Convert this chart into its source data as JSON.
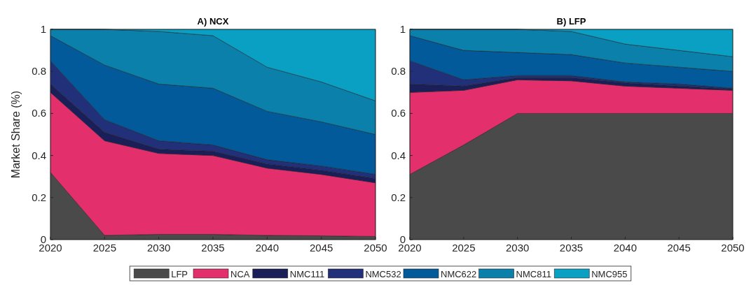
{
  "chart_data": [
    {
      "type": "area",
      "stacked": true,
      "title": "A) NCX",
      "ylabel": "Market Share (%)",
      "x": [
        2020,
        2025,
        2030,
        2035,
        2040,
        2045,
        2050
      ],
      "xlim": [
        2020,
        2050
      ],
      "xticks": [
        2020,
        2025,
        2030,
        2035,
        2040,
        2045,
        2050
      ],
      "ylim": [
        0,
        1
      ],
      "yticks": [
        0,
        0.2,
        0.4,
        0.6,
        0.8,
        1
      ],
      "legend": "bottom",
      "series": [
        {
          "name": "LFP",
          "color": "#4a4a4a",
          "values": [
            0.32,
            0.02,
            0.025,
            0.025,
            0.02,
            0.018,
            0.015
          ]
        },
        {
          "name": "NCA",
          "color": "#e3306c",
          "values": [
            0.38,
            0.45,
            0.385,
            0.375,
            0.32,
            0.292,
            0.255
          ]
        },
        {
          "name": "NMC111",
          "color": "#1a1f5a",
          "values": [
            0.04,
            0.04,
            0.02,
            0.02,
            0.02,
            0.02,
            0.02
          ]
        },
        {
          "name": "NMC532",
          "color": "#22307a",
          "values": [
            0.11,
            0.06,
            0.04,
            0.03,
            0.02,
            0.02,
            0.02
          ]
        },
        {
          "name": "NMC622",
          "color": "#035a9a",
          "values": [
            0.12,
            0.26,
            0.27,
            0.27,
            0.23,
            0.21,
            0.19
          ]
        },
        {
          "name": "NMC811",
          "color": "#0a80aa",
          "values": [
            0.03,
            0.17,
            0.25,
            0.25,
            0.21,
            0.19,
            0.16
          ]
        },
        {
          "name": "NMC955",
          "color": "#0aa0c4",
          "values": [
            0,
            0,
            0.01,
            0.03,
            0.18,
            0.25,
            0.34
          ]
        }
      ]
    },
    {
      "type": "area",
      "stacked": true,
      "title": "B) LFP",
      "x": [
        2020,
        2025,
        2030,
        2035,
        2040,
        2045,
        2050
      ],
      "xlim": [
        2020,
        2050
      ],
      "xticks": [
        2020,
        2025,
        2030,
        2035,
        2040,
        2045,
        2050
      ],
      "ylim": [
        0,
        1
      ],
      "yticks": [
        0,
        0.2,
        0.4,
        0.6,
        0.8,
        1
      ],
      "series": [
        {
          "name": "LFP",
          "color": "#4a4a4a",
          "values": [
            0.31,
            0.45,
            0.6,
            0.6,
            0.6,
            0.6,
            0.6
          ]
        },
        {
          "name": "NCA",
          "color": "#e3306c",
          "values": [
            0.39,
            0.26,
            0.16,
            0.155,
            0.13,
            0.12,
            0.11
          ]
        },
        {
          "name": "NMC111",
          "color": "#1a1f5a",
          "values": [
            0.04,
            0.02,
            0.01,
            0.015,
            0.015,
            0.01,
            0.005
          ]
        },
        {
          "name": "NMC532",
          "color": "#22307a",
          "values": [
            0.11,
            0.03,
            0.01,
            0.01,
            0.005,
            0.01,
            0.005
          ]
        },
        {
          "name": "NMC622",
          "color": "#035a9a",
          "values": [
            0.12,
            0.14,
            0.11,
            0.1,
            0.09,
            0.08,
            0.08
          ]
        },
        {
          "name": "NMC811",
          "color": "#0a80aa",
          "values": [
            0.03,
            0.1,
            0.11,
            0.11,
            0.09,
            0.08,
            0.07
          ]
        },
        {
          "name": "NMC955",
          "color": "#0aa0c4",
          "values": [
            0,
            0,
            0,
            0.01,
            0.07,
            0.1,
            0.13
          ]
        }
      ]
    }
  ]
}
